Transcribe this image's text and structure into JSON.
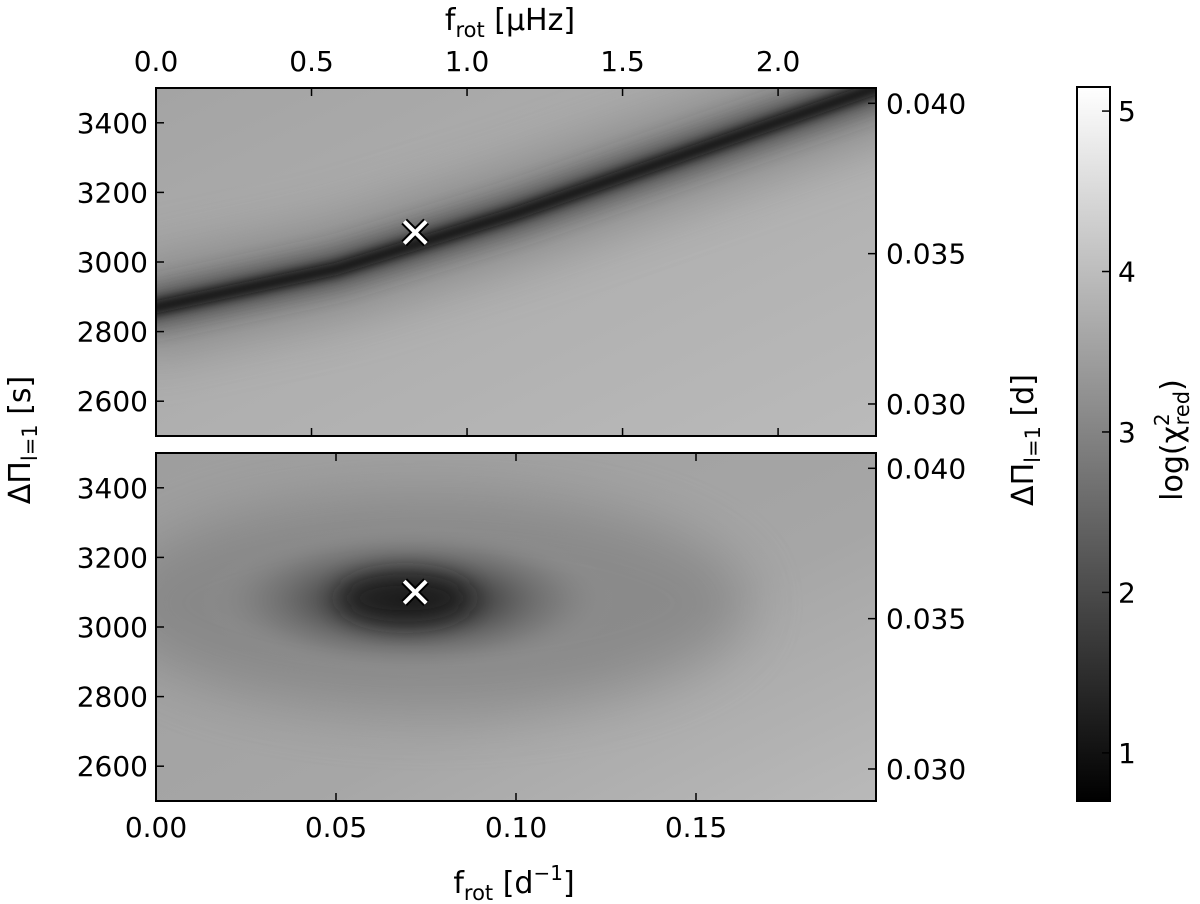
{
  "chart_data": [
    {
      "type": "heatmap",
      "panel": "top",
      "xlabel_top": "f_rot [μHz]",
      "ylabel": "ΔΠ_l=1 [s]",
      "ylabel_right": "ΔΠ_l=1 [d]",
      "xlim": [
        0,
        0.2
      ],
      "ylim": [
        2500,
        3500
      ],
      "xlim_top": [
        0,
        2.3148
      ],
      "ylim_right": [
        0.028935,
        0.040509
      ],
      "x_ticks_top": [
        "0.0",
        "0.5",
        "1.0",
        "1.5",
        "2.0"
      ],
      "y_ticks": [
        "2600",
        "2800",
        "3000",
        "3200",
        "3400"
      ],
      "y_ticks_right": [
        "0.030",
        "0.035",
        "0.040"
      ],
      "description_valley": "narrow curved low-chi2 valley",
      "valley_curve": [
        [
          0.0,
          2870
        ],
        [
          0.05,
          2980
        ],
        [
          0.1,
          3140
        ],
        [
          0.15,
          3320
        ],
        [
          0.2,
          3500
        ]
      ],
      "best_fit_marker": {
        "x": 0.072,
        "y": 3085,
        "symbol": "×"
      }
    },
    {
      "type": "heatmap",
      "panel": "bottom",
      "xlabel": "f_rot [d^-1]",
      "ylabel": "ΔΠ_l=1 [s]",
      "ylabel_right": "ΔΠ_l=1 [d]",
      "xlim": [
        0,
        0.2
      ],
      "ylim": [
        2500,
        3500
      ],
      "ylim_right": [
        0.028935,
        0.040509
      ],
      "x_ticks": [
        "0.00",
        "0.05",
        "0.10",
        "0.15"
      ],
      "y_ticks": [
        "2600",
        "2800",
        "3000",
        "3200",
        "3400"
      ],
      "y_ticks_right": [
        "0.030",
        "0.035",
        "0.040"
      ],
      "description_valley": "broad elliptical low-chi2 minimum",
      "best_fit_marker": {
        "x": 0.072,
        "y": 3100,
        "symbol": "×"
      }
    }
  ],
  "colorbar": {
    "label": "log(χ²_red)",
    "range": [
      0.7,
      5.15
    ],
    "ticks": [
      "1",
      "2",
      "3",
      "4",
      "5"
    ],
    "colormap": "gray",
    "low_color": "#000000",
    "high_color": "#ffffff"
  },
  "labels": {
    "top_xlabel_main": "f",
    "top_xlabel_sub": "rot",
    "top_xlabel_unit": " [μHz]",
    "bottom_xlabel_main": "f",
    "bottom_xlabel_sub": "rot",
    "bottom_xlabel_unit_open": " [d",
    "bottom_xlabel_sup": "−1",
    "bottom_xlabel_unit_close": "]",
    "left_ylabel_main": "ΔΠ",
    "left_ylabel_sub": "l=1",
    "left_ylabel_unit": " [s]",
    "right_ylabel_main": "ΔΠ",
    "right_ylabel_sub": "l=1",
    "right_ylabel_unit": " [d]",
    "cbar_label_main": "log(χ",
    "cbar_label_sup": "2",
    "cbar_label_sub": "red",
    "cbar_label_close": ")",
    "marker_symbol": "×"
  }
}
